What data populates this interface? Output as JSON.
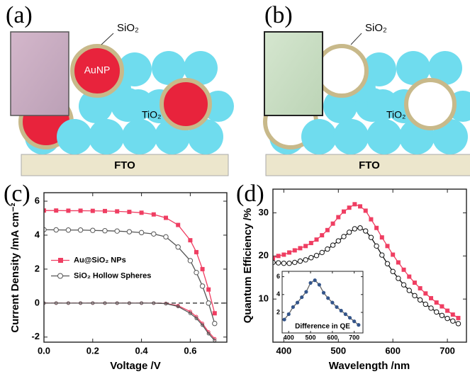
{
  "panels": {
    "a": {
      "label": "(a)",
      "shell": "SiO₂",
      "particle": "AuNP",
      "matrix": "TiO₂",
      "substrate": "FTO"
    },
    "b": {
      "label": "(b)",
      "shell": "SiO₂",
      "matrix": "TiO₂",
      "substrate": "FTO"
    }
  },
  "chart_data": [
    {
      "type": "line",
      "panel_label": "(c)",
      "xlabel": "Voltage /V",
      "ylabel": "Current Density /mA cm⁻²",
      "xlim": [
        0,
        0.75
      ],
      "ylim": [
        -2.3,
        6.5
      ],
      "xticks": [
        {
          "value": 0,
          "label": "0.0"
        },
        {
          "value": 0.2,
          "label": "0.2"
        },
        {
          "value": 0.4,
          "label": "0.4"
        },
        {
          "value": 0.6,
          "label": "0.6"
        }
      ],
      "yticks": [
        -2,
        0,
        2,
        4,
        6
      ],
      "zero_line": true,
      "legend": "center left",
      "x": [
        0,
        0.05,
        0.1,
        0.15,
        0.2,
        0.25,
        0.3,
        0.35,
        0.4,
        0.45,
        0.5,
        0.55,
        0.6,
        0.625,
        0.65,
        0.675,
        0.7
      ],
      "series": [
        {
          "name": "Au@SiO₂ NPs",
          "color": "#ef3e62",
          "marker": "square",
          "values": [
            5.45,
            5.45,
            5.44,
            5.44,
            5.43,
            5.42,
            5.4,
            5.37,
            5.32,
            5.22,
            5.02,
            4.6,
            3.7,
            3.0,
            2.0,
            0.8,
            -0.6
          ]
        },
        {
          "name": "SiO₂ Hollow Spheres",
          "color": "#555555",
          "marker": "circle",
          "values": [
            4.32,
            4.31,
            4.3,
            4.3,
            4.28,
            4.26,
            4.24,
            4.2,
            4.15,
            4.07,
            3.9,
            3.3,
            2.5,
            1.8,
            1.0,
            0.0,
            -1.2
          ]
        },
        {
          "color": "#ef3e62",
          "marker": "dot",
          "values": [
            0,
            0,
            0,
            0,
            0,
            0,
            0,
            0,
            0,
            0,
            -0.02,
            -0.15,
            -0.5,
            -0.8,
            -1.2,
            -1.7,
            -2.1
          ]
        },
        {
          "color": "#555555",
          "marker": "dot",
          "values": [
            0,
            0,
            0,
            0,
            0,
            0,
            0,
            0,
            0,
            0,
            -0.03,
            -0.2,
            -0.6,
            -0.9,
            -1.3,
            -1.8,
            -2.2
          ]
        }
      ]
    },
    {
      "type": "line",
      "panel_label": "(d)",
      "xlabel": "Wavelength /nm",
      "ylabel": "Quantum Efficiency /%",
      "xlim": [
        380,
        735
      ],
      "ylim": [
        0,
        35.5
      ],
      "xticks": [
        400,
        500,
        600,
        700
      ],
      "yticks": [
        10,
        20,
        30
      ],
      "x": [
        380,
        390,
        400,
        410,
        420,
        430,
        440,
        450,
        460,
        470,
        480,
        490,
        500,
        510,
        520,
        530,
        540,
        550,
        560,
        570,
        580,
        590,
        600,
        610,
        620,
        630,
        640,
        650,
        660,
        670,
        680,
        690,
        700,
        710,
        720
      ],
      "series": [
        {
          "color": "#ef3e62",
          "marker": "square",
          "values": [
            19.5,
            20,
            20.3,
            20.8,
            21.3,
            21.8,
            22.3,
            23,
            23.8,
            24.8,
            26,
            27.5,
            29,
            30.3,
            31.2,
            32,
            31.5,
            30.5,
            28.5,
            26.5,
            24.3,
            22.3,
            20.3,
            18.5,
            16.8,
            15.2,
            13.8,
            12.5,
            11.3,
            10.2,
            9.2,
            8.3,
            7.3,
            6.4,
            5.6
          ]
        },
        {
          "color": "#111111",
          "marker": "circle",
          "values": [
            18.5,
            18.4,
            18.3,
            18.3,
            18.5,
            18.8,
            19.1,
            19.6,
            20.1,
            20.8,
            21.6,
            22.5,
            23.5,
            24.5,
            25.5,
            26.3,
            26.5,
            25.8,
            24.3,
            22.3,
            20.2,
            18.2,
            16.4,
            14.8,
            13.3,
            12,
            10.8,
            9.8,
            8.8,
            7.9,
            7,
            6.2,
            5.5,
            4.9,
            4.3
          ]
        }
      ]
    },
    {
      "type": "line",
      "title": "Difference in QE",
      "xlim": [
        370,
        740
      ],
      "ylim": [
        -0.3,
        6.6
      ],
      "xticks": [
        400,
        500,
        600,
        700
      ],
      "yticks": [
        2,
        4,
        6
      ],
      "x": [
        380,
        400,
        420,
        440,
        460,
        480,
        500,
        520,
        540,
        560,
        580,
        600,
        620,
        640,
        660,
        680,
        700,
        720
      ],
      "series": [
        {
          "color": "#34558a",
          "marker": "filled",
          "values": [
            1.2,
            1.8,
            2.6,
            3.1,
            3.7,
            4.3,
            5.3,
            5.6,
            5.1,
            4.2,
            3.6,
            3.1,
            2.6,
            2.2,
            1.8,
            1.4,
            1.0,
            0.6
          ]
        }
      ]
    }
  ]
}
